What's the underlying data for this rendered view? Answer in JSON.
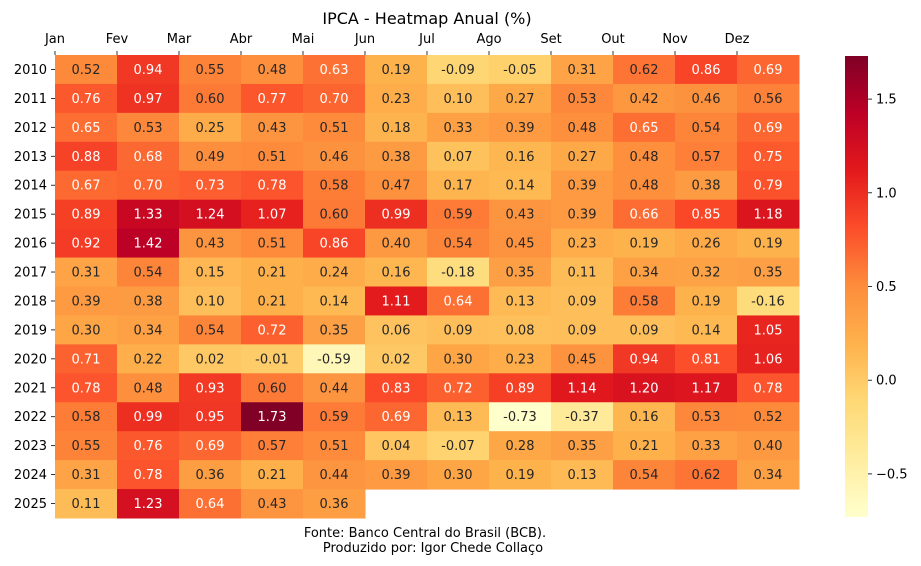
{
  "chart_data": {
    "type": "heatmap",
    "title": "IPCA - Heatmap Anual (%)",
    "columns": [
      "Jan",
      "Fev",
      "Mar",
      "Abr",
      "Mai",
      "Jun",
      "Jul",
      "Ago",
      "Set",
      "Out",
      "Nov",
      "Dez"
    ],
    "rows": [
      "2010",
      "2011",
      "2012",
      "2013",
      "2014",
      "2015",
      "2016",
      "2017",
      "2018",
      "2019",
      "2020",
      "2021",
      "2022",
      "2023",
      "2024",
      "2025"
    ],
    "values": [
      [
        0.52,
        0.94,
        0.55,
        0.48,
        0.63,
        0.19,
        -0.09,
        -0.05,
        0.31,
        0.62,
        0.86,
        0.69
      ],
      [
        0.76,
        0.97,
        0.6,
        0.77,
        0.7,
        0.23,
        0.1,
        0.27,
        0.53,
        0.42,
        0.46,
        0.56
      ],
      [
        0.65,
        0.53,
        0.25,
        0.43,
        0.51,
        0.18,
        0.33,
        0.39,
        0.48,
        0.65,
        0.54,
        0.69
      ],
      [
        0.88,
        0.68,
        0.49,
        0.51,
        0.46,
        0.38,
        0.07,
        0.16,
        0.27,
        0.48,
        0.57,
        0.75
      ],
      [
        0.67,
        0.7,
        0.73,
        0.78,
        0.58,
        0.47,
        0.17,
        0.14,
        0.39,
        0.48,
        0.38,
        0.79
      ],
      [
        0.89,
        1.33,
        1.24,
        1.07,
        0.6,
        0.99,
        0.59,
        0.43,
        0.39,
        0.66,
        0.85,
        1.18
      ],
      [
        0.92,
        1.42,
        0.43,
        0.51,
        0.86,
        0.4,
        0.54,
        0.45,
        0.23,
        0.19,
        0.26,
        0.19
      ],
      [
        0.31,
        0.54,
        0.15,
        0.21,
        0.24,
        0.16,
        -0.18,
        0.35,
        0.11,
        0.34,
        0.32,
        0.35
      ],
      [
        0.39,
        0.38,
        0.1,
        0.21,
        0.14,
        1.11,
        0.64,
        0.13,
        0.09,
        0.58,
        0.19,
        -0.16
      ],
      [
        0.3,
        0.34,
        0.54,
        0.72,
        0.35,
        0.06,
        0.09,
        0.08,
        0.09,
        0.09,
        0.14,
        1.05
      ],
      [
        0.71,
        0.22,
        0.02,
        -0.01,
        -0.59,
        0.02,
        0.3,
        0.23,
        0.45,
        0.94,
        0.81,
        1.06
      ],
      [
        0.78,
        0.48,
        0.93,
        0.6,
        0.44,
        0.83,
        0.72,
        0.89,
        1.14,
        1.2,
        1.17,
        0.78
      ],
      [
        0.58,
        0.99,
        0.95,
        1.73,
        0.59,
        0.69,
        0.13,
        -0.73,
        -0.37,
        0.16,
        0.53,
        0.52
      ],
      [
        0.55,
        0.76,
        0.69,
        0.57,
        0.51,
        0.04,
        -0.07,
        0.28,
        0.35,
        0.21,
        0.33,
        0.4
      ],
      [
        0.31,
        0.78,
        0.36,
        0.21,
        0.44,
        0.39,
        0.3,
        0.19,
        0.13,
        0.54,
        0.62,
        0.34
      ],
      [
        0.11,
        1.23,
        0.64,
        0.43,
        0.36,
        null,
        null,
        null,
        null,
        null,
        null,
        null
      ]
    ],
    "colormap": "YlOrRd",
    "colorbar": {
      "range": [
        -0.73,
        1.73
      ],
      "ticks": [
        -0.5,
        0.0,
        0.5,
        1.0,
        1.5
      ],
      "tick_labels": [
        "−0.5",
        "0.0",
        "0.5",
        "1.0",
        "1.5"
      ]
    },
    "x_tick_position": "top"
  },
  "footer": {
    "source": "Fonte: Banco Central do Brasil (BCB).",
    "author": "Produzido por: Igor Chede Collaço"
  }
}
